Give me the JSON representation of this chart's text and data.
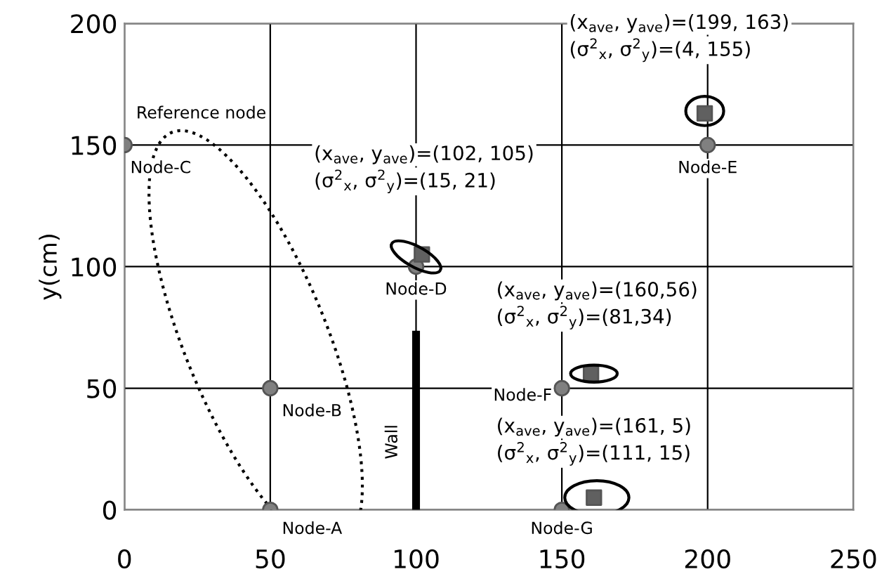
{
  "chart_data": {
    "type": "scatter",
    "ylabel": "y(cm)",
    "xlim": [
      0,
      250
    ],
    "ylim": [
      0,
      200
    ],
    "xticks": [
      0,
      50,
      100,
      150,
      200,
      250
    ],
    "yticks": [
      0,
      50,
      100,
      150,
      200
    ],
    "grid": true,
    "series": [
      {
        "color": "#808080",
        "marker": "circle",
        "x": [
          50,
          50,
          0,
          100,
          200,
          150,
          150
        ],
        "values": [
          0,
          50,
          150,
          100,
          150,
          50,
          0
        ]
      },
      {
        "color": "#606060",
        "marker": "square",
        "x": [
          102,
          160,
          161,
          199
        ],
        "values": [
          105,
          56,
          5,
          163
        ]
      },
      {
        "type": "line",
        "color": "#000000",
        "marker": "none",
        "x": [
          100,
          100
        ],
        "values": [
          0,
          72
        ]
      }
    ],
    "annotations": [
      {
        "text": "Node-A",
        "x": 50,
        "y": 0
      },
      {
        "text": "Node-B",
        "x": 50,
        "y": 50
      },
      {
        "text": "Node-C",
        "x": 0,
        "y": 150
      },
      {
        "text": "Node-D",
        "x": 100,
        "y": 100
      },
      {
        "text": "Node-E",
        "x": 200,
        "y": 150
      },
      {
        "text": "Node-F",
        "x": 150,
        "y": 50
      },
      {
        "text": "Node-G",
        "x": 150,
        "y": 0
      },
      {
        "text": "Reference node",
        "x": 0,
        "y": 150
      },
      {
        "text": "Wall",
        "x": 100,
        "y": 36
      },
      "(x$_{ave}$, y$_{ave}$)=(102, 105)",
      "(σ$^{2}$$_{x}$, σ$^{2}$$_{y}$)=(15, 21)",
      "(x$_{ave}$, y$_{ave}$)=(160,56)",
      "(σ$^{2}$$_{x}$, σ$^{2}$$_{y}$)=(81,34)",
      "(x$_{ave}$, y$_{ave}$)=(161, 5)",
      "(σ$^{2}$$_{x}$, σ$^{2}$$_{y}$)=(111, 15)",
      "(x$_{ave}$, y$_{ave}$)=(199, 163)",
      "(σ$^{2}$$_{x}$, σ$^{2}$$_{y}$)=(4, 155)"
    ]
  }
}
